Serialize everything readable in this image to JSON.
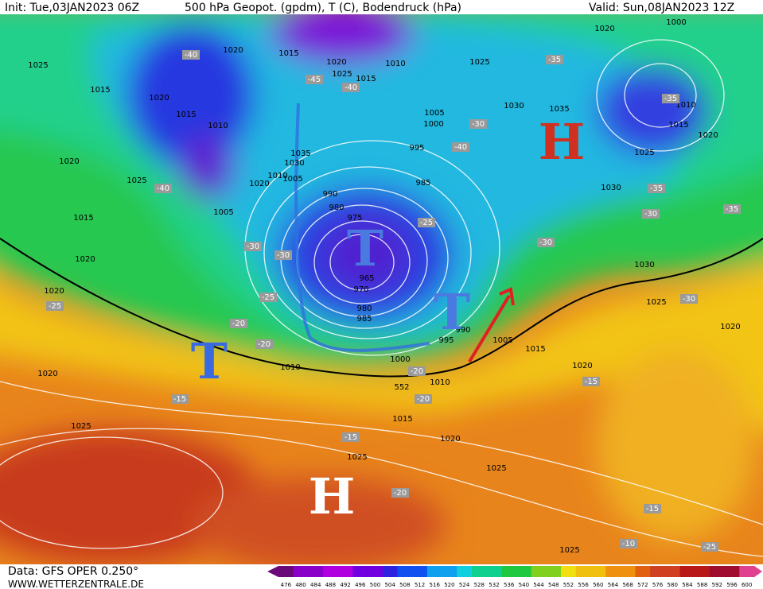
{
  "header": {
    "init": "Init: Tue,03JAN2023 06Z",
    "title": "500 hPa Geopot. (gpdm), T (C), Bodendruck (hPa)",
    "valid": "Valid: Sun,08JAN2023 12Z"
  },
  "footer": {
    "data": "Data: GFS OPER 0.250°",
    "site": "WWW.WETTERZENTRALE.DE"
  },
  "colorbar": [
    476,
    480,
    484,
    488,
    492,
    496,
    500,
    504,
    508,
    512,
    516,
    520,
    524,
    528,
    532,
    536,
    540,
    544,
    548,
    552,
    556,
    560,
    564,
    568,
    572,
    576,
    580,
    584,
    588,
    592,
    596,
    600
  ],
  "pressure_labels": [
    "1025",
    "1020",
    "1015",
    "1020",
    "1025",
    "1015",
    "1010",
    "1025",
    "1020",
    "1000",
    "1015",
    "1020",
    "1015",
    "1010",
    "1005",
    "1000",
    "995",
    "1030",
    "1035",
    "1010",
    "1015",
    "1020",
    "1025",
    "1020",
    "1025",
    "1035",
    "1030",
    "1010",
    "1020",
    "1005",
    "985",
    "990",
    "980",
    "975",
    "1030",
    "1005",
    "1015",
    "1020",
    "965",
    "970",
    "980",
    "985",
    "990",
    "995",
    "1005",
    "1015",
    "1030",
    "1025",
    "1020",
    "1020",
    "1020",
    "1010",
    "1000",
    "1010",
    "1020",
    "1015",
    "1025",
    "1020",
    "1025",
    "1025",
    "1025"
  ],
  "temperature_labels": [
    "-40",
    "-45",
    "-40",
    "-35",
    "-35",
    "-30",
    "-40",
    "-40",
    "-35",
    "-30",
    "-35",
    "-30",
    "-30",
    "-25",
    "-30",
    "-25",
    "-20",
    "-20",
    "-25",
    "-20",
    "-20",
    "-15",
    "-15",
    "-15",
    "-20",
    "-15",
    "-10",
    "-25",
    "-30"
  ],
  "height_labels": [
    "552"
  ],
  "pressure_systems": [
    "T",
    "T",
    "T",
    "H",
    "H"
  ]
}
